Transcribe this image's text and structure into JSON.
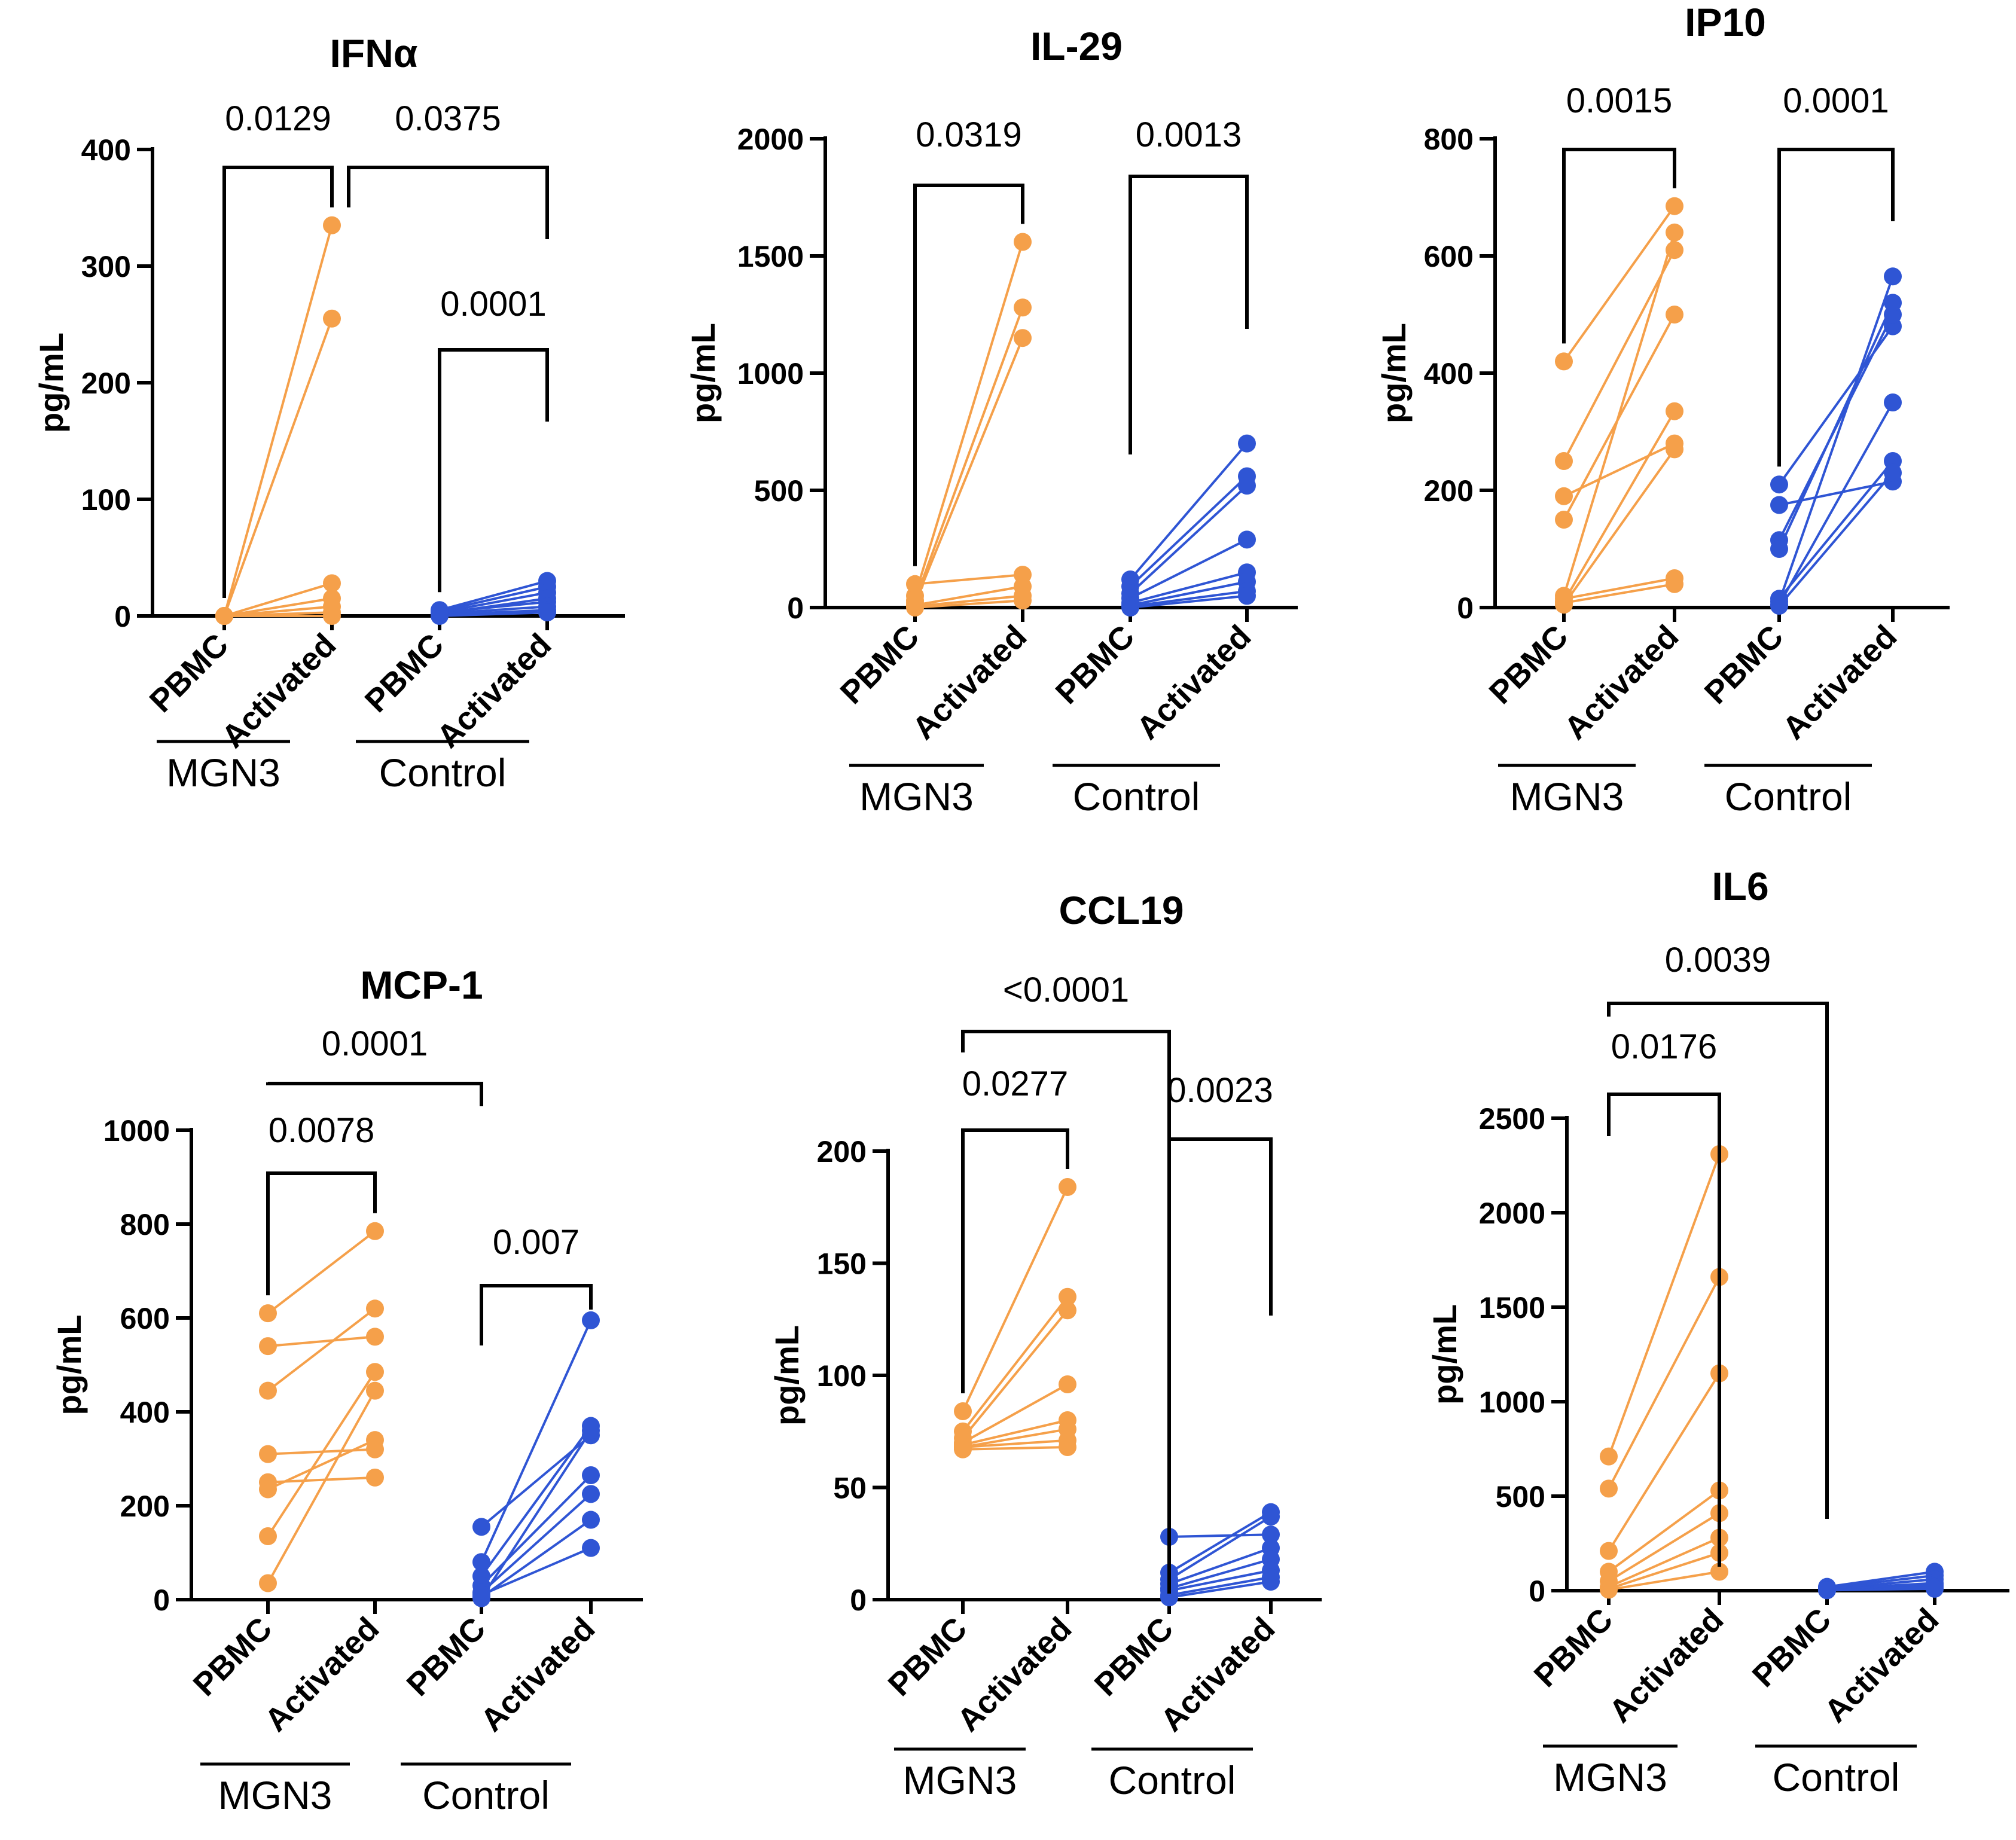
{
  "colors": {
    "mgn3": "#F5A04A",
    "control": "#2F55D4",
    "axis": "#000000"
  },
  "chart_data": [
    {
      "type": "scatter",
      "title": "IFNα",
      "ylabel": "pg/mL",
      "ylim": [
        0,
        400
      ],
      "yticks": [
        0,
        100,
        200,
        300,
        400
      ],
      "categories": [
        "PBMC",
        "Activated",
        "PBMC",
        "Activated"
      ],
      "groups": [
        "MGN3",
        "Control"
      ],
      "series": [
        {
          "name": "MGN3",
          "pairs": [
            [
              0,
              335
            ],
            [
              0,
              255
            ],
            [
              0,
              28
            ],
            [
              0,
              15
            ],
            [
              0,
              8
            ],
            [
              0,
              3
            ],
            [
              0,
              0
            ]
          ]
        },
        {
          "name": "Control",
          "pairs": [
            [
              5,
              30
            ],
            [
              4,
              25
            ],
            [
              3,
              20
            ],
            [
              2,
              15
            ],
            [
              3,
              12
            ],
            [
              2,
              8
            ],
            [
              1,
              5
            ],
            [
              0,
              3
            ]
          ]
        }
      ],
      "comparisons": [
        {
          "label": "0.0129",
          "from": 0,
          "to": 1
        },
        {
          "label": "0.0375",
          "from": 1,
          "to": 3
        },
        {
          "label": "0.0001",
          "from": 2,
          "to": 3
        }
      ]
    },
    {
      "type": "scatter",
      "title": "IL-29",
      "ylabel": "pg/mL",
      "ylim": [
        0,
        2000
      ],
      "yticks": [
        0,
        500,
        1000,
        1500,
        2000
      ],
      "categories": [
        "PBMC",
        "Activated",
        "PBMC",
        "Activated"
      ],
      "groups": [
        "MGN3",
        "Control"
      ],
      "series": [
        {
          "name": "MGN3",
          "pairs": [
            [
              50,
              1560
            ],
            [
              30,
              1280
            ],
            [
              20,
              1150
            ],
            [
              100,
              140
            ],
            [
              10,
              90
            ],
            [
              5,
              50
            ],
            [
              0,
              30
            ]
          ]
        },
        {
          "name": "Control",
          "pairs": [
            [
              120,
              700
            ],
            [
              90,
              560
            ],
            [
              60,
              520
            ],
            [
              40,
              290
            ],
            [
              20,
              150
            ],
            [
              10,
              110
            ],
            [
              5,
              70
            ],
            [
              0,
              50
            ]
          ]
        }
      ],
      "comparisons": [
        {
          "label": "0.0319",
          "from": 0,
          "to": 1
        },
        {
          "label": "0.0013",
          "from": 2,
          "to": 3
        }
      ]
    },
    {
      "type": "scatter",
      "title": "IP10",
      "ylabel": "pg/mL",
      "ylim": [
        0,
        800
      ],
      "yticks": [
        0,
        200,
        400,
        600,
        800
      ],
      "categories": [
        "PBMC",
        "Activated",
        "PBMC",
        "Activated"
      ],
      "groups": [
        "MGN3",
        "Control"
      ],
      "series": [
        {
          "name": "MGN3",
          "pairs": [
            [
              420,
              685
            ],
            [
              250,
              610
            ],
            [
              190,
              280
            ],
            [
              150,
              500
            ],
            [
              20,
              640
            ],
            [
              10,
              335
            ],
            [
              5,
              270
            ],
            [
              15,
              50
            ],
            [
              8,
              40
            ]
          ]
        },
        {
          "name": "Control",
          "pairs": [
            [
              210,
              480
            ],
            [
              175,
              215
            ],
            [
              115,
              500
            ],
            [
              100,
              520
            ],
            [
              10,
              565
            ],
            [
              5,
              350
            ],
            [
              15,
              250
            ],
            [
              3,
              230
            ]
          ]
        }
      ],
      "comparisons": [
        {
          "label": "0.0015",
          "from": 0,
          "to": 1
        },
        {
          "label": "0.0001",
          "from": 2,
          "to": 3
        }
      ]
    },
    {
      "type": "scatter",
      "title": "MCP-1",
      "ylabel": "pg/mL",
      "ylim": [
        0,
        1000
      ],
      "yticks": [
        0,
        200,
        400,
        600,
        800,
        1000
      ],
      "categories": [
        "PBMC",
        "Activated",
        "PBMC",
        "Activated"
      ],
      "groups": [
        "MGN3",
        "Control"
      ],
      "series": [
        {
          "name": "MGN3",
          "pairs": [
            [
              610,
              785
            ],
            [
              540,
              560
            ],
            [
              445,
              620
            ],
            [
              310,
              320
            ],
            [
              250,
              260
            ],
            [
              235,
              340
            ],
            [
              135,
              485
            ],
            [
              35,
              445
            ]
          ]
        },
        {
          "name": "Control",
          "pairs": [
            [
              155,
              350
            ],
            [
              80,
              595
            ],
            [
              50,
              370
            ],
            [
              30,
              265
            ],
            [
              15,
              225
            ],
            [
              5,
              170
            ],
            [
              10,
              110
            ],
            [
              3,
              360
            ]
          ]
        }
      ],
      "comparisons": [
        {
          "label": "0.0078",
          "from": 0,
          "to": 1
        },
        {
          "label": "0.0001",
          "from": 0,
          "to": 2
        },
        {
          "label": "0.007",
          "from": 2,
          "to": 3
        }
      ]
    },
    {
      "type": "scatter",
      "title": "CCL19",
      "ylabel": "pg/mL",
      "ylim": [
        0,
        200
      ],
      "yticks": [
        0,
        50,
        100,
        150,
        200
      ],
      "categories": [
        "PBMC",
        "Activated",
        "PBMC",
        "Activated"
      ],
      "groups": [
        "MGN3",
        "Control"
      ],
      "series": [
        {
          "name": "MGN3",
          "pairs": [
            [
              84,
              184
            ],
            [
              75,
              135
            ],
            [
              72,
              129
            ],
            [
              70,
              96
            ],
            [
              69,
              80
            ],
            [
              68,
              76
            ],
            [
              68,
              71
            ],
            [
              67,
              68
            ]
          ]
        },
        {
          "name": "Control",
          "pairs": [
            [
              28,
              29
            ],
            [
              12,
              39
            ],
            [
              9,
              37
            ],
            [
              7,
              23
            ],
            [
              5,
              18
            ],
            [
              4,
              13
            ],
            [
              2,
              10
            ],
            [
              1,
              8
            ]
          ]
        }
      ],
      "comparisons": [
        {
          "label": "0.0277",
          "from": 0,
          "to": 1
        },
        {
          "label": "<0.0001",
          "from": 0,
          "to": 2
        },
        {
          "label": "0.0023",
          "from": 2,
          "to": 3
        }
      ]
    },
    {
      "type": "scatter",
      "title": "IL6",
      "ylabel": "pg/mL",
      "ylim": [
        0,
        2500
      ],
      "yticks": [
        0,
        500,
        1000,
        1500,
        2000,
        2500
      ],
      "categories": [
        "PBMC",
        "Activated",
        "PBMC",
        "Activated"
      ],
      "groups": [
        "MGN3",
        "Control"
      ],
      "series": [
        {
          "name": "MGN3",
          "pairs": [
            [
              710,
              2310
            ],
            [
              540,
              1660
            ],
            [
              210,
              1150
            ],
            [
              100,
              530
            ],
            [
              50,
              410
            ],
            [
              20,
              280
            ],
            [
              10,
              200
            ],
            [
              5,
              100
            ]
          ]
        },
        {
          "name": "Control",
          "pairs": [
            [
              20,
              100
            ],
            [
              15,
              80
            ],
            [
              10,
              60
            ],
            [
              8,
              40
            ],
            [
              5,
              30
            ],
            [
              3,
              20
            ],
            [
              2,
              10
            ]
          ]
        }
      ],
      "comparisons": [
        {
          "label": "0.0176",
          "from": 0,
          "to": 1
        },
        {
          "label": "0.0039",
          "from": 0,
          "to": 2
        }
      ]
    }
  ]
}
